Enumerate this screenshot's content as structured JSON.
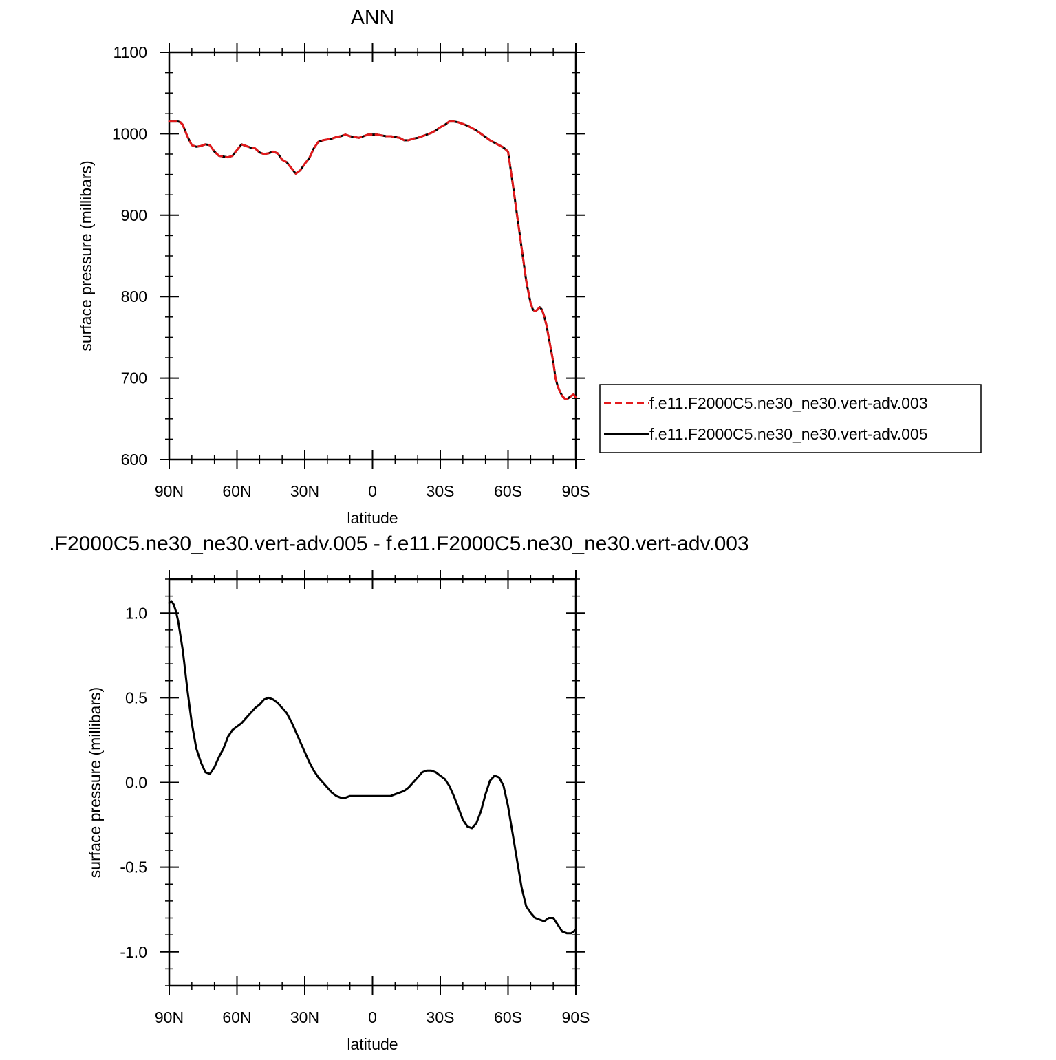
{
  "chart_data": [
    {
      "type": "line",
      "title": "ANN",
      "xlabel": "latitude",
      "ylabel": "surface pressure (millibars)",
      "xlim": [
        90,
        -90
      ],
      "ylim": [
        600,
        1100
      ],
      "x_ticks": [
        90,
        60,
        30,
        0,
        -30,
        -60,
        -90
      ],
      "x_tick_labels": [
        "90N",
        "60N",
        "30N",
        "0",
        "30S",
        "60S",
        "90S"
      ],
      "y_ticks": [
        600,
        700,
        800,
        900,
        1000,
        1100
      ],
      "y_tick_labels": [
        "600",
        "700",
        "800",
        "900",
        "1000",
        "1100"
      ],
      "grid": false,
      "legend_position": "right",
      "x": [
        90,
        88,
        86,
        85,
        84,
        82,
        80,
        78,
        76,
        74,
        72,
        70,
        68,
        66,
        64,
        62,
        60,
        58,
        56,
        54,
        52,
        50,
        48,
        46,
        44,
        42,
        40,
        38,
        36,
        34,
        32,
        30,
        28,
        26,
        24,
        22,
        20,
        18,
        16,
        14,
        12,
        10,
        8,
        6,
        4,
        2,
        0,
        -2,
        -4,
        -6,
        -8,
        -10,
        -12,
        -14,
        -16,
        -18,
        -20,
        -22,
        -24,
        -26,
        -28,
        -30,
        -32,
        -34,
        -36,
        -38,
        -40,
        -42,
        -44,
        -46,
        -48,
        -50,
        -52,
        -54,
        -56,
        -58,
        -60,
        -62,
        -64,
        -66,
        -67,
        -68,
        -69,
        -70,
        -71,
        -72,
        -73,
        -74,
        -75,
        -76,
        -77,
        -78,
        -79,
        -80,
        -81,
        -82,
        -83,
        -84,
        -85,
        -86,
        -87,
        -88,
        -89,
        -90
      ],
      "series": [
        {
          "name": "f.e11.F2000C5.ne30_ne30.vert-adv.003",
          "color": "#e41a1c",
          "dash": "dashed",
          "values": [
            1015,
            1015,
            1015,
            1014,
            1011,
            997,
            986,
            984,
            985,
            987,
            986,
            978,
            973,
            972,
            971,
            973,
            980,
            987,
            985,
            983,
            982,
            977,
            975,
            976,
            978,
            976,
            968,
            965,
            958,
            951,
            955,
            963,
            970,
            982,
            990,
            992,
            993,
            994,
            996,
            997,
            999,
            997,
            996,
            995,
            997,
            999,
            999,
            999,
            998,
            997,
            997,
            996,
            995,
            992,
            992,
            994,
            995,
            997,
            999,
            1001,
            1004,
            1008,
            1011,
            1015,
            1015,
            1014,
            1012,
            1010,
            1007,
            1004,
            1000,
            996,
            992,
            989,
            986,
            983,
            978,
            940,
            900,
            860,
            840,
            820,
            806,
            792,
            784,
            782,
            784,
            787,
            784,
            776,
            765,
            750,
            735,
            720,
            700,
            690,
            683,
            678,
            675,
            674,
            676,
            678,
            680,
            676
          ],
          "values_note_placeholder": ""
        },
        {
          "name": "f.e11.F2000C5.ne30_ne30.vert-adv.005",
          "color": "#000000",
          "dash": "solid",
          "values": [
            1015,
            1015,
            1015,
            1014,
            1011,
            997,
            986,
            984,
            985,
            987,
            986,
            978,
            973,
            972,
            971,
            973,
            980,
            987,
            985,
            983,
            982,
            977,
            975,
            976,
            978,
            976,
            968,
            965,
            958,
            951,
            955,
            963,
            970,
            982,
            990,
            992,
            993,
            994,
            996,
            997,
            999,
            997,
            996,
            995,
            997,
            999,
            999,
            999,
            998,
            997,
            997,
            996,
            995,
            992,
            992,
            994,
            995,
            997,
            999,
            1001,
            1004,
            1008,
            1011,
            1015,
            1015,
            1014,
            1012,
            1010,
            1007,
            1004,
            1000,
            996,
            992,
            989,
            986,
            983,
            978,
            940,
            900,
            860,
            840,
            820,
            806,
            792,
            784,
            782,
            784,
            787,
            784,
            776,
            765,
            750,
            735,
            720,
            700,
            690,
            683,
            678,
            675,
            674,
            676,
            678,
            680,
            676
          ]
        }
      ]
    },
    {
      "type": "line",
      "title": ".F2000C5.ne30_ne30.vert-adv.005 - f.e11.F2000C5.ne30_ne30.vert-adv.003",
      "xlabel": "latitude",
      "ylabel": "surface pressure (millibars)",
      "xlim": [
        90,
        -90
      ],
      "ylim": [
        -1.2,
        1.2
      ],
      "x_ticks": [
        90,
        60,
        30,
        0,
        -30,
        -60,
        -90
      ],
      "x_tick_labels": [
        "90N",
        "60N",
        "30N",
        "0",
        "30S",
        "60S",
        "90S"
      ],
      "y_ticks": [
        -1.0,
        -0.5,
        0.0,
        0.5,
        1.0
      ],
      "y_tick_labels": [
        "-1.0",
        "-0.5",
        "0.0",
        "0.5",
        "1.0"
      ],
      "grid": false,
      "x": [
        90,
        89,
        88,
        87,
        86,
        84,
        82,
        80,
        78,
        76,
        74,
        72,
        70,
        68,
        66,
        64,
        62,
        60,
        58,
        56,
        54,
        52,
        50,
        48,
        46,
        44,
        42,
        40,
        38,
        36,
        34,
        32,
        30,
        28,
        26,
        24,
        22,
        20,
        18,
        16,
        14,
        12,
        10,
        8,
        6,
        4,
        2,
        0,
        -2,
        -4,
        -6,
        -8,
        -10,
        -12,
        -14,
        -16,
        -18,
        -20,
        -22,
        -24,
        -26,
        -28,
        -30,
        -32,
        -34,
        -36,
        -38,
        -40,
        -42,
        -44,
        -46,
        -48,
        -50,
        -52,
        -54,
        -56,
        -58,
        -60,
        -62,
        -64,
        -66,
        -68,
        -70,
        -72,
        -74,
        -76,
        -78,
        -80,
        -82,
        -84,
        -86,
        -88,
        -90
      ],
      "series": [
        {
          "name": "",
          "color": "#000000",
          "dash": "solid",
          "values": [
            1.06,
            1.07,
            1.05,
            1.01,
            0.95,
            0.78,
            0.55,
            0.35,
            0.2,
            0.12,
            0.06,
            0.05,
            0.09,
            0.15,
            0.2,
            0.27,
            0.31,
            0.33,
            0.35,
            0.38,
            0.41,
            0.44,
            0.46,
            0.49,
            0.5,
            0.49,
            0.47,
            0.44,
            0.41,
            0.36,
            0.3,
            0.24,
            0.18,
            0.12,
            0.07,
            0.03,
            0.0,
            -0.03,
            -0.06,
            -0.08,
            -0.09,
            -0.09,
            -0.08,
            -0.08,
            -0.08,
            -0.08,
            -0.08,
            -0.08,
            -0.08,
            -0.08,
            -0.08,
            -0.08,
            -0.07,
            -0.06,
            -0.05,
            -0.03,
            0.0,
            0.03,
            0.06,
            0.07,
            0.07,
            0.06,
            0.04,
            0.02,
            -0.02,
            -0.08,
            -0.15,
            -0.22,
            -0.26,
            -0.27,
            -0.24,
            -0.17,
            -0.07,
            0.01,
            0.04,
            0.03,
            -0.02,
            -0.14,
            -0.3,
            -0.46,
            -0.62,
            -0.73,
            -0.77,
            -0.8,
            -0.81,
            -0.82,
            -0.8,
            -0.8,
            -0.84,
            -0.88,
            -0.89,
            -0.89,
            -0.87
          ]
        }
      ]
    }
  ]
}
